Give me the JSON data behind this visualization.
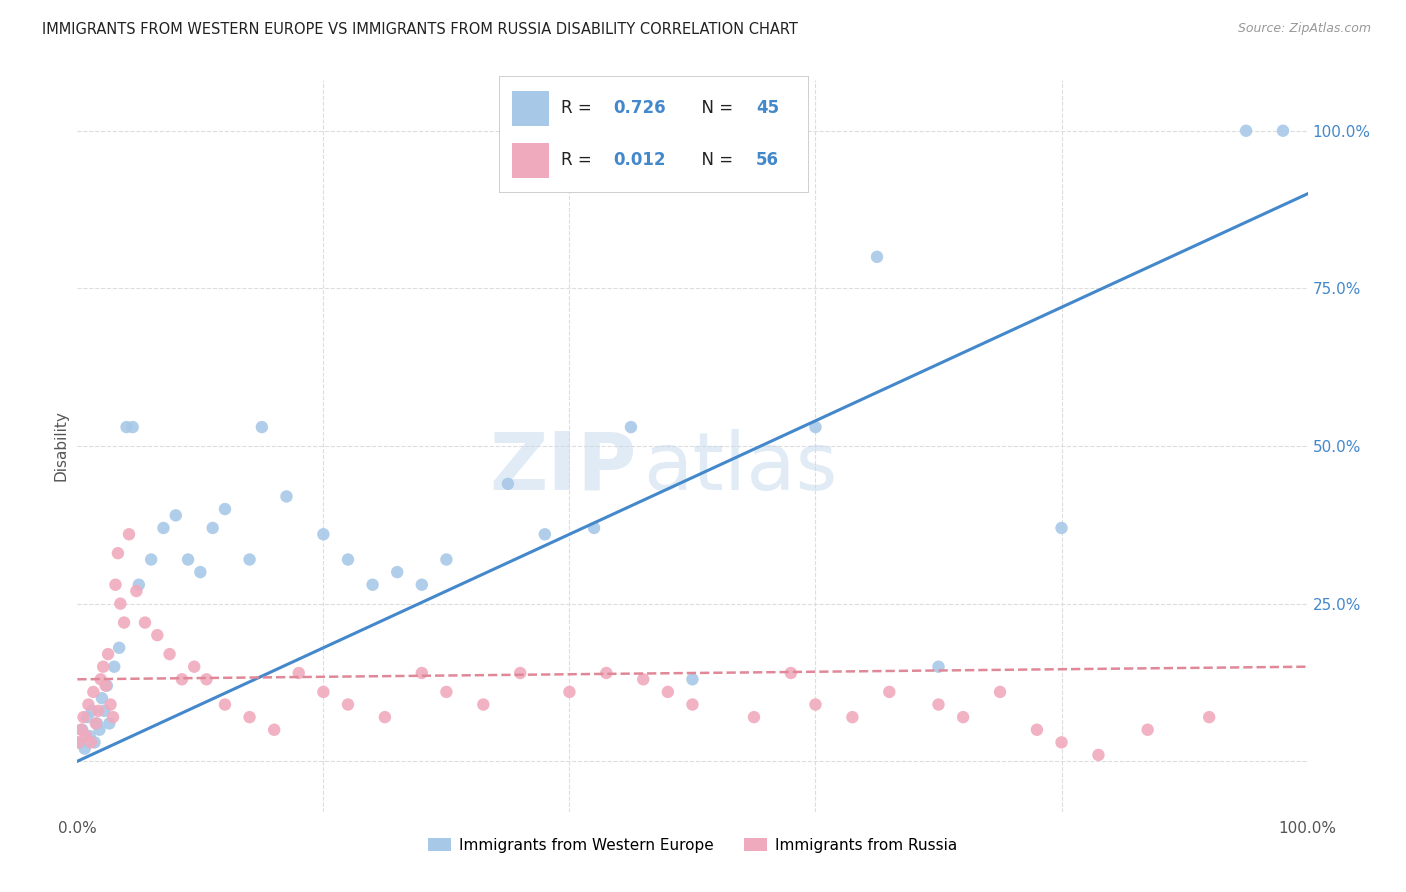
{
  "title": "IMMIGRANTS FROM WESTERN EUROPE VS IMMIGRANTS FROM RUSSIA DISABILITY CORRELATION CHART",
  "source": "Source: ZipAtlas.com",
  "ylabel": "Disability",
  "watermark_zip": "ZIP",
  "watermark_atlas": "atlas",
  "blue_label": "Immigrants from Western Europe",
  "pink_label": "Immigrants from Russia",
  "blue_R": 0.726,
  "blue_N": 45,
  "pink_R": 0.012,
  "pink_N": 56,
  "blue_color": "#a8c8e8",
  "pink_color": "#f0aabe",
  "blue_line_color": "#4488cc",
  "pink_line_color": "#e08898",
  "xlim": [
    0,
    100
  ],
  "ylim": [
    -8,
    108
  ],
  "grid_color": "#dddddd",
  "background_color": "#ffffff",
  "blue_x": [
    0.2,
    0.4,
    0.6,
    0.8,
    1.0,
    1.2,
    1.4,
    1.6,
    1.8,
    2.0,
    2.2,
    2.4,
    2.6,
    3.0,
    3.4,
    4.0,
    4.5,
    5.0,
    6.0,
    7.0,
    8.0,
    9.0,
    10.0,
    11.0,
    12.0,
    14.0,
    15.0,
    17.0,
    20.0,
    22.0,
    24.0,
    26.0,
    28.0,
    30.0,
    35.0,
    38.0,
    42.0,
    45.0,
    50.0,
    60.0,
    65.0,
    70.0,
    80.0,
    95.0,
    98.0
  ],
  "blue_y": [
    3.0,
    5.0,
    2.0,
    7.0,
    4.0,
    8.0,
    3.0,
    6.0,
    5.0,
    10.0,
    8.0,
    12.0,
    6.0,
    15.0,
    18.0,
    53.0,
    53.0,
    28.0,
    32.0,
    37.0,
    39.0,
    32.0,
    30.0,
    37.0,
    40.0,
    32.0,
    53.0,
    42.0,
    36.0,
    32.0,
    28.0,
    30.0,
    28.0,
    32.0,
    44.0,
    36.0,
    37.0,
    53.0,
    13.0,
    53.0,
    80.0,
    15.0,
    37.0,
    100.0,
    100.0
  ],
  "pink_x": [
    0.1,
    0.3,
    0.5,
    0.7,
    0.9,
    1.1,
    1.3,
    1.5,
    1.7,
    1.9,
    2.1,
    2.3,
    2.5,
    2.7,
    2.9,
    3.1,
    3.3,
    3.5,
    3.8,
    4.2,
    4.8,
    5.5,
    6.5,
    7.5,
    8.5,
    9.5,
    10.5,
    12.0,
    14.0,
    16.0,
    18.0,
    20.0,
    22.0,
    25.0,
    28.0,
    30.0,
    33.0,
    36.0,
    40.0,
    43.0,
    46.0,
    48.0,
    50.0,
    55.0,
    58.0,
    60.0,
    63.0,
    66.0,
    70.0,
    72.0,
    75.0,
    78.0,
    80.0,
    83.0,
    87.0,
    92.0
  ],
  "pink_y": [
    3.0,
    5.0,
    7.0,
    4.0,
    9.0,
    3.0,
    11.0,
    6.0,
    8.0,
    13.0,
    15.0,
    12.0,
    17.0,
    9.0,
    7.0,
    28.0,
    33.0,
    25.0,
    22.0,
    36.0,
    27.0,
    22.0,
    20.0,
    17.0,
    13.0,
    15.0,
    13.0,
    9.0,
    7.0,
    5.0,
    14.0,
    11.0,
    9.0,
    7.0,
    14.0,
    11.0,
    9.0,
    14.0,
    11.0,
    14.0,
    13.0,
    11.0,
    9.0,
    7.0,
    14.0,
    9.0,
    7.0,
    11.0,
    9.0,
    7.0,
    11.0,
    5.0,
    3.0,
    1.0,
    5.0,
    7.0
  ],
  "blue_line_x0": 0,
  "blue_line_y0": 0,
  "blue_line_x1": 100,
  "blue_line_y1": 90,
  "pink_line_x0": 0,
  "pink_line_y0": 13,
  "pink_line_x1": 100,
  "pink_line_y1": 15
}
